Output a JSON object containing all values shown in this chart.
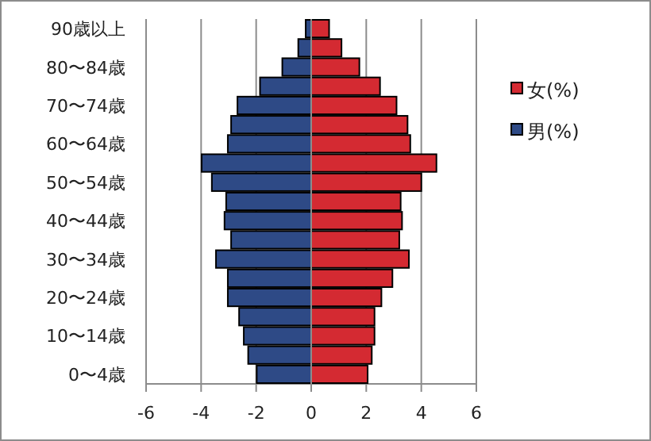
{
  "chart_data": {
    "type": "bar",
    "orientation": "horizontal",
    "stacked": true,
    "categories": [
      "90歳以上",
      null,
      "80〜84歳",
      null,
      "70〜74歳",
      null,
      "60〜64歳",
      null,
      "50〜54歳",
      null,
      "40〜44歳",
      null,
      "30〜34歳",
      null,
      "20〜24歳",
      null,
      "10〜14歳",
      null,
      "0〜4歳"
    ],
    "series": [
      {
        "name": "女(%)",
        "color": "#d42a32",
        "values": [
          0.65,
          1.1,
          1.75,
          2.5,
          3.1,
          3.5,
          3.6,
          4.55,
          4.0,
          3.25,
          3.3,
          3.2,
          3.55,
          2.95,
          2.55,
          2.3,
          2.3,
          2.2,
          2.05
        ]
      },
      {
        "name": "男(%)",
        "color": "#2e4a86",
        "values": [
          -0.2,
          -0.47,
          -1.05,
          -1.86,
          -2.68,
          -2.91,
          -3.03,
          -3.98,
          -3.61,
          -3.09,
          -3.15,
          -2.91,
          -3.46,
          -3.03,
          -3.03,
          -2.62,
          -2.45,
          -2.29,
          -1.98
        ]
      }
    ],
    "xlim": [
      -6,
      6
    ],
    "xticks": [
      -6,
      -4,
      -2,
      0,
      2,
      4,
      6
    ],
    "grid": "x",
    "legend": "right"
  }
}
